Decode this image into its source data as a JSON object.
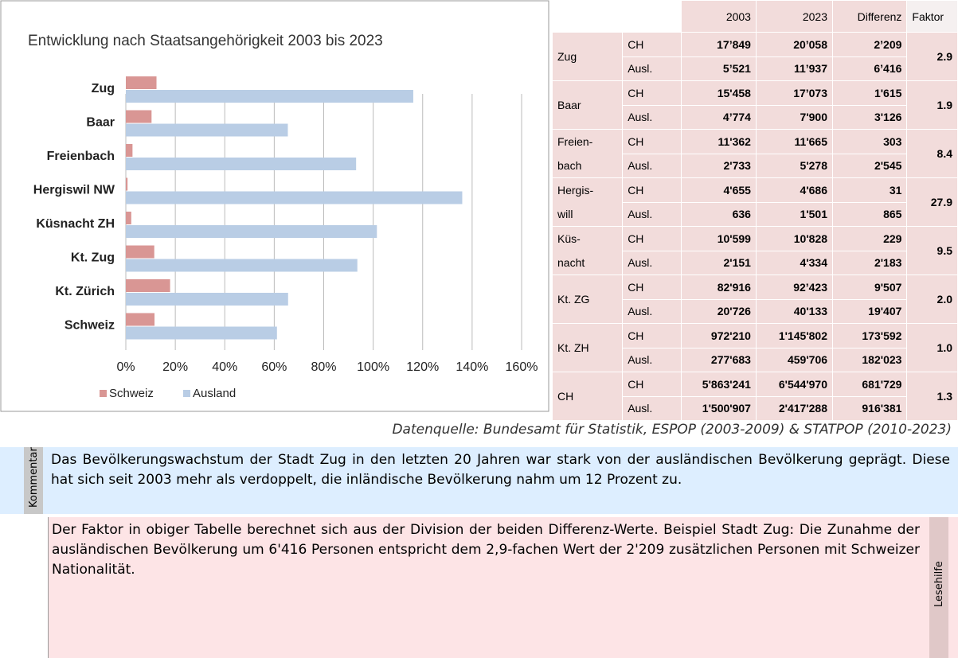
{
  "chart_data": {
    "type": "bar",
    "orientation": "horizontal",
    "title": "Entwicklung nach Staatsangehörigkeit 2003 bis 2023",
    "categories": [
      "Zug",
      "Baar",
      "Freienbach",
      "Hergiswil NW",
      "Küsnacht ZH",
      "Kt. Zug",
      "Kt. Zürich",
      "Schweiz"
    ],
    "series": [
      {
        "name": "Schweiz",
        "color": "#d99694",
        "values": [
          12.4,
          10.4,
          2.7,
          0.7,
          2.2,
          11.5,
          17.9,
          11.6
        ]
      },
      {
        "name": "Ausland",
        "color": "#b9cde5",
        "values": [
          116.2,
          65.5,
          93.1,
          136.0,
          101.5,
          93.6,
          65.6,
          61.1
        ]
      }
    ],
    "xlim": [
      0,
      160
    ],
    "xticks": [
      {
        "value": 0,
        "label": "0%"
      },
      {
        "value": 20,
        "label": "20%"
      },
      {
        "value": 40,
        "label": "40%"
      },
      {
        "value": 60,
        "label": "60%"
      },
      {
        "value": 80,
        "label": "80%"
      },
      {
        "value": 100,
        "label": "100%"
      },
      {
        "value": 120,
        "label": "120%"
      },
      {
        "value": 140,
        "label": "140%"
      },
      {
        "value": 160,
        "label": "160%"
      }
    ],
    "grid": true,
    "legend": "bottom"
  },
  "table": {
    "header": [
      "2003",
      "2023",
      "Differenz",
      "Faktor"
    ],
    "groups": [
      {
        "place": [
          "Zug"
        ],
        "rows": [
          [
            "CH",
            "17’849",
            "20’058",
            "2’209"
          ],
          [
            "Ausl.",
            "5’521",
            "11’937",
            "6’416"
          ]
        ],
        "factor": "2.9"
      },
      {
        "place": [
          "Baar"
        ],
        "rows": [
          [
            "CH",
            "15'458",
            "17’073",
            "1'615"
          ],
          [
            "Ausl.",
            "4’774",
            "7'900",
            "3'126"
          ]
        ],
        "factor": "1.9"
      },
      {
        "place": [
          "Freien-",
          "bach"
        ],
        "rows": [
          [
            "CH",
            "11'362",
            "11'665",
            "303"
          ],
          [
            "Ausl.",
            "2'733",
            "5'278",
            "2'545"
          ]
        ],
        "factor": "8.4"
      },
      {
        "place": [
          "Hergis-",
          "will"
        ],
        "rows": [
          [
            "CH",
            "4'655",
            "4'686",
            "31"
          ],
          [
            "Ausl.",
            "636",
            "1'501",
            "865"
          ]
        ],
        "factor": "27.9"
      },
      {
        "place": [
          "Küs-",
          "nacht"
        ],
        "rows": [
          [
            "CH",
            "10'599",
            "10'828",
            "229"
          ],
          [
            "Ausl.",
            "2'151",
            "4'334",
            "2'183"
          ]
        ],
        "factor": "9.5"
      },
      {
        "place": [
          "Kt. ZG"
        ],
        "rows": [
          [
            "CH",
            "82'916",
            "92’423",
            "9'507"
          ],
          [
            "Ausl.",
            "20'726",
            "40'133",
            "19'407"
          ]
        ],
        "factor": "2.0"
      },
      {
        "place": [
          "Kt. ZH"
        ],
        "rows": [
          [
            "CH",
            "972'210",
            "1'145'802",
            "173'592"
          ],
          [
            "Ausl.",
            "277'683",
            "459'706",
            "182'023"
          ]
        ],
        "factor": "1.0"
      },
      {
        "place": [
          "CH"
        ],
        "rows": [
          [
            "CH",
            "5'863'241",
            "6'544'970",
            "681'729"
          ],
          [
            "Ausl.",
            "1'500'907",
            "2'417'288",
            "916'381"
          ]
        ],
        "factor": "1.3"
      }
    ]
  },
  "source": "Datenquelle: Bundesamt für Statistik, ESPOP (2003-2009) & STATPOP (2010-2023)",
  "comment": {
    "label": "Kommentar",
    "text": "Das Bevölkerungswachstum der Stadt Zug in den letzten 20 Jahren war stark von der ausländischen Bevölkerung geprägt. Diese hat sich seit 2003 mehr als verdoppelt, die inländische Bevölkerung nahm um 12 Prozent zu."
  },
  "help": {
    "label": "Lesehilfe",
    "text": "Der Faktor in obiger Tabelle berechnet sich aus der Division der beiden Differenz-Werte. Beispiel Stadt Zug: Die Zunahme der ausländischen Bevölkerung um 6'416 Personen entspricht dem 2,9-fachen Wert der 2'209 zusätzlichen Personen mit Schweizer Nationalität."
  }
}
